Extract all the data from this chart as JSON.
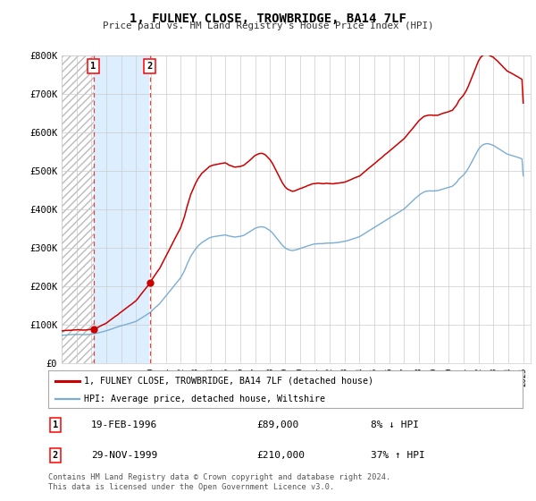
{
  "title": "1, FULNEY CLOSE, TROWBRIDGE, BA14 7LF",
  "subtitle": "Price paid vs. HM Land Registry's House Price Index (HPI)",
  "sale1_date": "19-FEB-1996",
  "sale1_price": 89000,
  "sale1_hpi_pct": "8% ↓ HPI",
  "sale2_date": "29-NOV-1999",
  "sale2_price": 210000,
  "sale2_hpi_pct": "37% ↑ HPI",
  "sale1_year": 1996.13,
  "sale2_year": 1999.91,
  "xmin": 1994.0,
  "xmax": 2025.5,
  "ymin": 0,
  "ymax": 800000,
  "yticks": [
    0,
    100000,
    200000,
    300000,
    400000,
    500000,
    600000,
    700000,
    800000
  ],
  "line1_color": "#cc0000",
  "line2_color": "#7aadd4",
  "shade_color": "#ddeeff",
  "vline_color": "#dd4444",
  "marker_color": "#cc0000",
  "legend1_label": "1, FULNEY CLOSE, TROWBRIDGE, BA14 7LF (detached house)",
  "legend2_label": "HPI: Average price, detached house, Wiltshire",
  "footer": "Contains HM Land Registry data © Crown copyright and database right 2024.\nThis data is licensed under the Open Government Licence v3.0.",
  "background_color": "#ffffff",
  "grid_color": "#cccccc",
  "hpi_years": [
    1994.0,
    1994.083,
    1994.167,
    1994.25,
    1994.333,
    1994.417,
    1994.5,
    1994.583,
    1994.667,
    1994.75,
    1994.833,
    1994.917,
    1995.0,
    1995.083,
    1995.167,
    1995.25,
    1995.333,
    1995.417,
    1995.5,
    1995.583,
    1995.667,
    1995.75,
    1995.833,
    1995.917,
    1996.0,
    1996.083,
    1996.167,
    1996.25,
    1996.333,
    1996.417,
    1996.5,
    1996.583,
    1996.667,
    1996.75,
    1996.833,
    1996.917,
    1997.0,
    1997.083,
    1997.167,
    1997.25,
    1997.333,
    1997.417,
    1997.5,
    1997.583,
    1997.667,
    1997.75,
    1997.833,
    1997.917,
    1998.0,
    1998.083,
    1998.167,
    1998.25,
    1998.333,
    1998.417,
    1998.5,
    1998.583,
    1998.667,
    1998.75,
    1998.833,
    1998.917,
    1999.0,
    1999.083,
    1999.167,
    1999.25,
    1999.333,
    1999.417,
    1999.5,
    1999.583,
    1999.667,
    1999.75,
    1999.833,
    1999.917,
    2000.0,
    2000.083,
    2000.167,
    2000.25,
    2000.333,
    2000.417,
    2000.5,
    2000.583,
    2000.667,
    2000.75,
    2000.833,
    2000.917,
    2001.0,
    2001.083,
    2001.167,
    2001.25,
    2001.333,
    2001.417,
    2001.5,
    2001.583,
    2001.667,
    2001.75,
    2001.833,
    2001.917,
    2002.0,
    2002.083,
    2002.167,
    2002.25,
    2002.333,
    2002.417,
    2002.5,
    2002.583,
    2002.667,
    2002.75,
    2002.833,
    2002.917,
    2003.0,
    2003.083,
    2003.167,
    2003.25,
    2003.333,
    2003.417,
    2003.5,
    2003.583,
    2003.667,
    2003.75,
    2003.833,
    2003.917,
    2004.0,
    2004.083,
    2004.167,
    2004.25,
    2004.333,
    2004.417,
    2004.5,
    2004.583,
    2004.667,
    2004.75,
    2004.833,
    2004.917,
    2005.0,
    2005.083,
    2005.167,
    2005.25,
    2005.333,
    2005.417,
    2005.5,
    2005.583,
    2005.667,
    2005.75,
    2005.833,
    2005.917,
    2006.0,
    2006.083,
    2006.167,
    2006.25,
    2006.333,
    2006.417,
    2006.5,
    2006.583,
    2006.667,
    2006.75,
    2006.833,
    2006.917,
    2007.0,
    2007.083,
    2007.167,
    2007.25,
    2007.333,
    2007.417,
    2007.5,
    2007.583,
    2007.667,
    2007.75,
    2007.833,
    2007.917,
    2008.0,
    2008.083,
    2008.167,
    2008.25,
    2008.333,
    2008.417,
    2008.5,
    2008.583,
    2008.667,
    2008.75,
    2008.833,
    2008.917,
    2009.0,
    2009.083,
    2009.167,
    2009.25,
    2009.333,
    2009.417,
    2009.5,
    2009.583,
    2009.667,
    2009.75,
    2009.833,
    2009.917,
    2010.0,
    2010.083,
    2010.167,
    2010.25,
    2010.333,
    2010.417,
    2010.5,
    2010.583,
    2010.667,
    2010.75,
    2010.833,
    2010.917,
    2011.0,
    2011.083,
    2011.167,
    2011.25,
    2011.333,
    2011.417,
    2011.5,
    2011.583,
    2011.667,
    2011.75,
    2011.833,
    2011.917,
    2012.0,
    2012.083,
    2012.167,
    2012.25,
    2012.333,
    2012.417,
    2012.5,
    2012.583,
    2012.667,
    2012.75,
    2012.833,
    2012.917,
    2013.0,
    2013.083,
    2013.167,
    2013.25,
    2013.333,
    2013.417,
    2013.5,
    2013.583,
    2013.667,
    2013.75,
    2013.833,
    2013.917,
    2014.0,
    2014.083,
    2014.167,
    2014.25,
    2014.333,
    2014.417,
    2014.5,
    2014.583,
    2014.667,
    2014.75,
    2014.833,
    2014.917,
    2015.0,
    2015.083,
    2015.167,
    2015.25,
    2015.333,
    2015.417,
    2015.5,
    2015.583,
    2015.667,
    2015.75,
    2015.833,
    2015.917,
    2016.0,
    2016.083,
    2016.167,
    2016.25,
    2016.333,
    2016.417,
    2016.5,
    2016.583,
    2016.667,
    2016.75,
    2016.833,
    2016.917,
    2017.0,
    2017.083,
    2017.167,
    2017.25,
    2017.333,
    2017.417,
    2017.5,
    2017.583,
    2017.667,
    2017.75,
    2017.833,
    2017.917,
    2018.0,
    2018.083,
    2018.167,
    2018.25,
    2018.333,
    2018.417,
    2018.5,
    2018.583,
    2018.667,
    2018.75,
    2018.833,
    2018.917,
    2019.0,
    2019.083,
    2019.167,
    2019.25,
    2019.333,
    2019.417,
    2019.5,
    2019.583,
    2019.667,
    2019.75,
    2019.833,
    2019.917,
    2020.0,
    2020.083,
    2020.167,
    2020.25,
    2020.333,
    2020.417,
    2020.5,
    2020.583,
    2020.667,
    2020.75,
    2020.833,
    2020.917,
    2021.0,
    2021.083,
    2021.167,
    2021.25,
    2021.333,
    2021.417,
    2021.5,
    2021.583,
    2021.667,
    2021.75,
    2021.833,
    2021.917,
    2022.0,
    2022.083,
    2022.167,
    2022.25,
    2022.333,
    2022.417,
    2022.5,
    2022.583,
    2022.667,
    2022.75,
    2022.833,
    2022.917,
    2023.0,
    2023.083,
    2023.167,
    2023.25,
    2023.333,
    2023.417,
    2023.5,
    2023.583,
    2023.667,
    2023.75,
    2023.833,
    2023.917,
    2024.0,
    2024.083,
    2024.167,
    2024.25,
    2024.333,
    2024.417,
    2024.5,
    2024.583,
    2024.667,
    2024.75,
    2024.833,
    2024.917,
    2025.0
  ],
  "hpi_prices": [
    72000,
    72500,
    73000,
    73200,
    73400,
    73600,
    73800,
    74000,
    74200,
    74400,
    74600,
    74800,
    75000,
    75200,
    75400,
    75100,
    74800,
    74600,
    74700,
    74900,
    75100,
    75300,
    75500,
    75700,
    76000,
    76500,
    77000,
    77500,
    78000,
    78800,
    79600,
    80400,
    81200,
    82000,
    82800,
    83600,
    84400,
    85500,
    86600,
    87700,
    88800,
    90000,
    91200,
    92400,
    93600,
    94800,
    96000,
    97200,
    98000,
    99000,
    100000,
    101000,
    102000,
    103000,
    104000,
    105000,
    106000,
    107000,
    108000,
    109000,
    110000,
    112000,
    114000,
    116000,
    118000,
    120000,
    122000,
    124000,
    126000,
    128000,
    130000,
    132000,
    135000,
    138000,
    141000,
    144000,
    147000,
    150000,
    153000,
    156000,
    160000,
    164000,
    168000,
    172000,
    176000,
    180000,
    184000,
    188000,
    192000,
    196000,
    200000,
    204000,
    208000,
    212000,
    216000,
    220000,
    224000,
    230000,
    236000,
    242000,
    250000,
    258000,
    265000,
    272000,
    279000,
    284000,
    289000,
    294000,
    298000,
    302000,
    306000,
    309000,
    312000,
    315000,
    317000,
    319000,
    321000,
    323000,
    325000,
    327000,
    328000,
    329000,
    330000,
    330500,
    331000,
    331500,
    332000,
    332500,
    333000,
    333500,
    334000,
    334500,
    335000,
    334000,
    333000,
    332000,
    331500,
    331000,
    330500,
    330000,
    330000,
    330500,
    331000,
    331500,
    332000,
    333000,
    334000,
    335000,
    337000,
    339000,
    341000,
    343000,
    345000,
    347000,
    349000,
    351000,
    353000,
    354000,
    355000,
    356000,
    356500,
    357000,
    356500,
    356000,
    355000,
    353000,
    351000,
    349000,
    347000,
    344000,
    341000,
    337000,
    333000,
    329000,
    325000,
    321000,
    317000,
    313000,
    309000,
    306000,
    303000,
    301000,
    299000,
    298000,
    297000,
    296500,
    296000,
    296500,
    297000,
    298000,
    299000,
    300000,
    301000,
    302000,
    303000,
    304000,
    305000,
    306000,
    307000,
    308000,
    309000,
    310000,
    311000,
    312000,
    312000,
    312500,
    313000,
    313000,
    313000,
    313000,
    313000,
    313000,
    313500,
    314000,
    314000,
    314000,
    314000,
    314000,
    314000,
    314000,
    314500,
    315000,
    315000,
    315500,
    316000,
    316500,
    317000,
    317500,
    318000,
    319000,
    320000,
    321000,
    322000,
    323000,
    324000,
    325000,
    326000,
    327000,
    328000,
    329000,
    330000,
    332000,
    334000,
    336000,
    338000,
    340000,
    342000,
    344000,
    346000,
    348000,
    350000,
    352000,
    354000,
    356000,
    358000,
    360000,
    362000,
    364000,
    366000,
    368000,
    370000,
    372000,
    374000,
    376000,
    378000,
    380000,
    382000,
    384000,
    386000,
    388000,
    390000,
    392000,
    394000,
    396000,
    398000,
    400000,
    402000,
    405000,
    408000,
    411000,
    414000,
    417000,
    420000,
    423000,
    426000,
    429000,
    432000,
    435000,
    438000,
    440000,
    442000,
    444000,
    446000,
    447000,
    448000,
    448500,
    449000,
    449000,
    449000,
    449000,
    449000,
    449500,
    450000,
    450000,
    451000,
    452000,
    453000,
    454000,
    455000,
    456000,
    457000,
    458000,
    459000,
    460000,
    461000,
    462000,
    465000,
    468000,
    471000,
    475000,
    480000,
    483000,
    486000,
    489000,
    492000,
    496000,
    500000,
    505000,
    510000,
    516000,
    522000,
    528000,
    534000,
    540000,
    546000,
    552000,
    558000,
    562000,
    566000,
    568000,
    570000,
    571000,
    572000,
    572000,
    572000,
    571000,
    570000,
    569000,
    568000,
    566000,
    564000,
    562000,
    560000,
    558000,
    556000,
    554000,
    552000,
    550000,
    548000,
    546000,
    545000,
    544000,
    543000,
    542000,
    541000,
    540000,
    539000,
    538000,
    537000,
    536000,
    535000,
    534000,
    490000
  ]
}
